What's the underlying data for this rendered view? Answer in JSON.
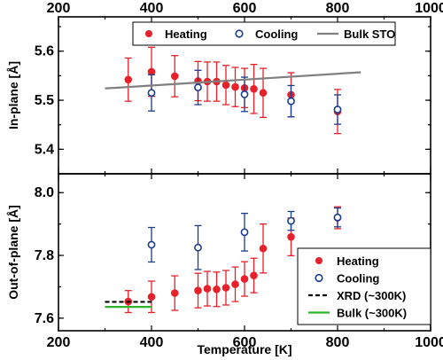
{
  "chart_data": [
    {
      "type": "scatter",
      "panel": "top",
      "xlabel": "",
      "ylabel": "In-plane [Å]",
      "xlim": [
        200,
        1000
      ],
      "ylim": [
        5.35,
        5.67
      ],
      "x_ticks": [
        "200",
        "400",
        "600",
        "800",
        "1000"
      ],
      "x_tick_values": [
        200,
        400,
        600,
        800,
        1000
      ],
      "y_ticks": [
        "5.4",
        "5.5",
        "5.6"
      ],
      "y_tick_values": [
        5.4,
        5.5,
        5.6
      ],
      "legend_position": "top-center",
      "series": [
        {
          "name": "Heating",
          "marker": "filled-circle",
          "color": "#e8202a",
          "points": [
            {
              "x": 350,
              "y": 5.542,
              "err": 0.044
            },
            {
              "x": 400,
              "y": 5.558,
              "err": 0.05
            },
            {
              "x": 450,
              "y": 5.549,
              "err": 0.042
            },
            {
              "x": 500,
              "y": 5.539,
              "err": 0.04
            },
            {
              "x": 520,
              "y": 5.538,
              "err": 0.04
            },
            {
              "x": 540,
              "y": 5.538,
              "err": 0.04
            },
            {
              "x": 560,
              "y": 5.531,
              "err": 0.04
            },
            {
              "x": 580,
              "y": 5.527,
              "err": 0.04
            },
            {
              "x": 600,
              "y": 5.525,
              "err": 0.04
            },
            {
              "x": 620,
              "y": 5.523,
              "err": 0.05
            },
            {
              "x": 640,
              "y": 5.515,
              "err": 0.05
            },
            {
              "x": 700,
              "y": 5.511,
              "err": 0.045
            },
            {
              "x": 800,
              "y": 5.477,
              "err": 0.045
            }
          ]
        },
        {
          "name": "Cooling",
          "marker": "open-circle",
          "color": "#1a3d8f",
          "points": [
            {
              "x": 400,
              "y": 5.515,
              "err": 0.037
            },
            {
              "x": 500,
              "y": 5.526,
              "err": 0.035
            },
            {
              "x": 600,
              "y": 5.512,
              "err": 0.035
            },
            {
              "x": 700,
              "y": 5.498,
              "err": 0.032
            },
            {
              "x": 800,
              "y": 5.481,
              "err": 0.03
            }
          ]
        },
        {
          "name": "Bulk STO",
          "style": "line",
          "color": "#808080",
          "points": [
            {
              "x": 300,
              "y": 5.524
            },
            {
              "x": 850,
              "y": 5.557
            }
          ]
        }
      ]
    },
    {
      "type": "scatter",
      "panel": "bottom",
      "xlabel": "Temperature [K]",
      "ylabel": "Out-of-plane [Å]",
      "xlim": [
        200,
        1000
      ],
      "ylim": [
        7.56,
        8.06
      ],
      "x_ticks": [
        "200",
        "400",
        "600",
        "800",
        "1000"
      ],
      "x_tick_values": [
        200,
        400,
        600,
        800,
        1000
      ],
      "y_ticks": [
        "7.6",
        "7.8",
        "8.0"
      ],
      "y_tick_values": [
        7.6,
        7.8,
        8.0
      ],
      "legend_position": "bottom-right",
      "series": [
        {
          "name": "Heating",
          "marker": "filled-circle",
          "color": "#e8202a",
          "points": [
            {
              "x": 350,
              "y": 7.653,
              "err": 0.035
            },
            {
              "x": 400,
              "y": 7.668,
              "err": 0.05
            },
            {
              "x": 450,
              "y": 7.68,
              "err": 0.055
            },
            {
              "x": 500,
              "y": 7.688,
              "err": 0.055
            },
            {
              "x": 520,
              "y": 7.694,
              "err": 0.055
            },
            {
              "x": 540,
              "y": 7.692,
              "err": 0.055
            },
            {
              "x": 560,
              "y": 7.697,
              "err": 0.055
            },
            {
              "x": 580,
              "y": 7.708,
              "err": 0.055
            },
            {
              "x": 600,
              "y": 7.725,
              "err": 0.055
            },
            {
              "x": 620,
              "y": 7.736,
              "err": 0.055
            },
            {
              "x": 640,
              "y": 7.822,
              "err": 0.078
            },
            {
              "x": 700,
              "y": 7.859,
              "err": 0.06
            },
            {
              "x": 800,
              "y": 7.92,
              "err": 0.035
            }
          ]
        },
        {
          "name": "Cooling",
          "marker": "open-circle",
          "color": "#1a3d8f",
          "points": [
            {
              "x": 400,
              "y": 7.834,
              "err": 0.055
            },
            {
              "x": 500,
              "y": 7.825,
              "err": 0.07
            },
            {
              "x": 600,
              "y": 7.874,
              "err": 0.06
            },
            {
              "x": 700,
              "y": 7.91,
              "err": 0.03
            },
            {
              "x": 800,
              "y": 7.921,
              "err": 0.03
            }
          ]
        },
        {
          "name": "XRD (~300K)",
          "style": "dashed-line",
          "color": "#000000",
          "points": [
            {
              "x": 300,
              "y": 7.652
            },
            {
              "x": 400,
              "y": 7.652
            }
          ]
        },
        {
          "name": "Bulk (~300K)",
          "style": "line",
          "color": "#2db52d",
          "points": [
            {
              "x": 300,
              "y": 7.636
            },
            {
              "x": 400,
              "y": 7.636
            }
          ]
        }
      ]
    }
  ]
}
